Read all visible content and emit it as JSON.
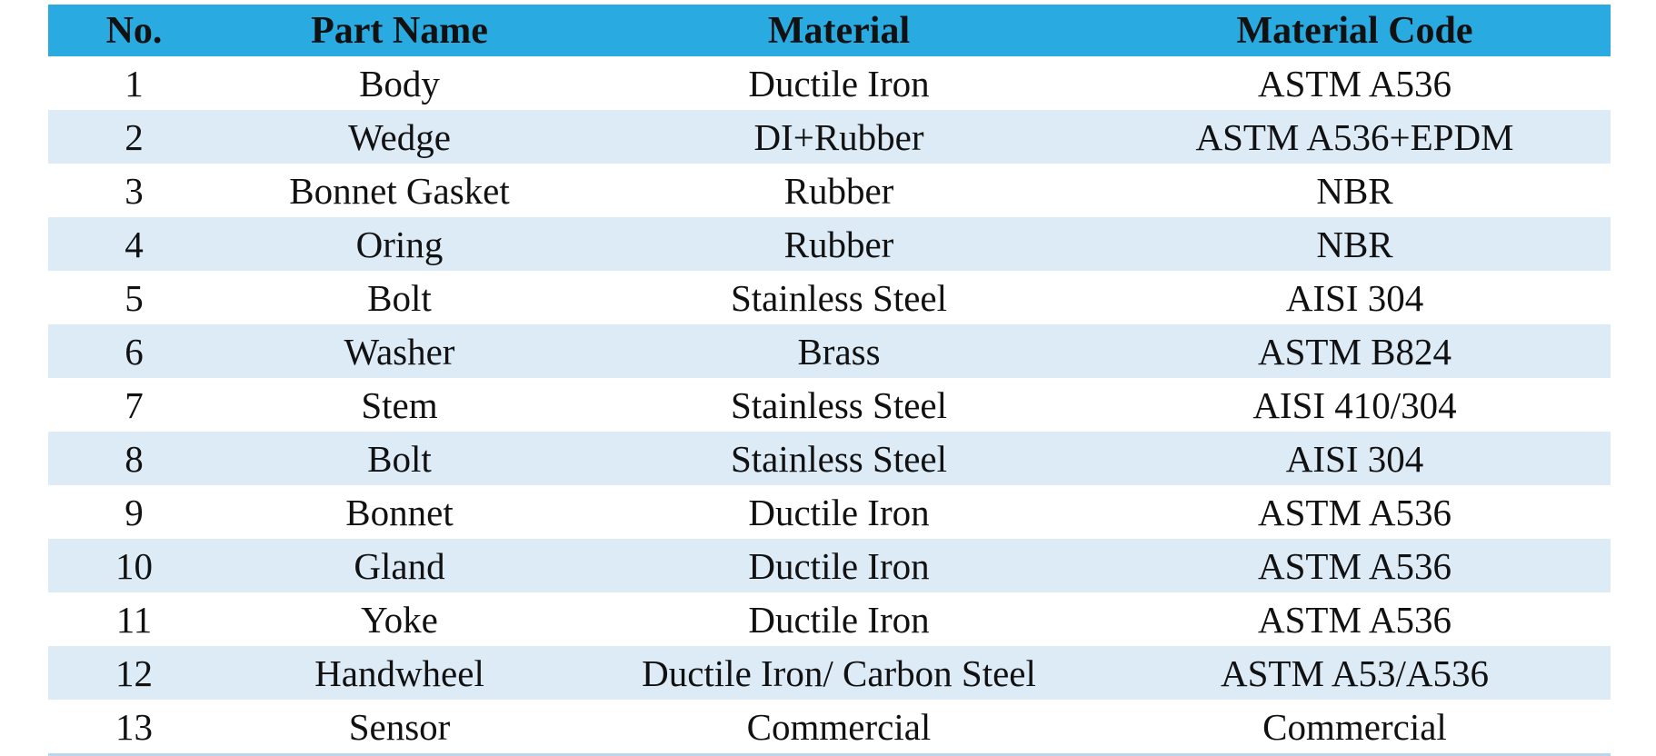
{
  "table": {
    "columns": [
      "No.",
      "Part Name",
      "Material",
      "Material Code"
    ],
    "rows": [
      [
        "1",
        "Body",
        "Ductile Iron",
        "ASTM A536"
      ],
      [
        "2",
        "Wedge",
        "DI+Rubber",
        "ASTM A536+EPDM"
      ],
      [
        "3",
        "Bonnet Gasket",
        "Rubber",
        "NBR"
      ],
      [
        "4",
        "Oring",
        "Rubber",
        "NBR"
      ],
      [
        "5",
        "Bolt",
        "Stainless Steel",
        "AISI 304"
      ],
      [
        "6",
        "Washer",
        "Brass",
        "ASTM B824"
      ],
      [
        "7",
        "Stem",
        "Stainless Steel",
        "AISI 410/304"
      ],
      [
        "8",
        "Bolt",
        "Stainless Steel",
        "AISI 304"
      ],
      [
        "9",
        "Bonnet",
        "Ductile Iron",
        "ASTM A536"
      ],
      [
        "10",
        "Gland",
        "Ductile Iron",
        "ASTM A536"
      ],
      [
        "11",
        "Yoke",
        "Ductile Iron",
        "ASTM A536"
      ],
      [
        "12",
        "Handwheel",
        "Ductile Iron/ Carbon Steel",
        "ASTM A53/A536"
      ],
      [
        "13",
        "Sensor",
        "Commercial",
        "Commercial"
      ]
    ]
  }
}
